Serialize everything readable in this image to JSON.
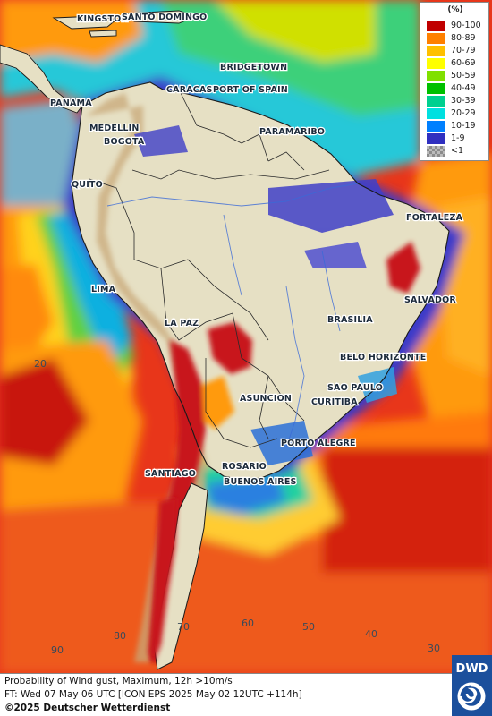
{
  "map": {
    "cities": [
      {
        "name": "KINGSTON"
      },
      {
        "name": "SANTO DOMINGO"
      },
      {
        "name": "BRIDGETOWN"
      },
      {
        "name": "PORT OF SPAIN"
      },
      {
        "name": "CARACAS"
      },
      {
        "name": "PANAMA"
      },
      {
        "name": "MEDELLIN"
      },
      {
        "name": "BOGOTA"
      },
      {
        "name": "PARAMARIBO"
      },
      {
        "name": "QUITO"
      },
      {
        "name": "FORTALEZA"
      },
      {
        "name": "LIMA"
      },
      {
        "name": "SALVADOR"
      },
      {
        "name": "LA PAZ"
      },
      {
        "name": "BRASILIA"
      },
      {
        "name": "BELO HORIZONTE"
      },
      {
        "name": "SAO PAULO"
      },
      {
        "name": "ASUNCION"
      },
      {
        "name": "CURITIBA"
      },
      {
        "name": "PORTO ALEGRE"
      },
      {
        "name": "ROSARIO"
      },
      {
        "name": "SANTIAGO"
      },
      {
        "name": "BUENOS AIRES"
      }
    ],
    "latitude_labels": [
      "20"
    ],
    "longitude_labels": [
      "90",
      "80",
      "70",
      "60",
      "50",
      "40",
      "30"
    ],
    "regions": {
      "ocean_background": "#f03a1a",
      "land": "#e9e3c8"
    }
  },
  "legend": {
    "title": "(%)",
    "entries": [
      {
        "label": "90-100",
        "color": "#c00000"
      },
      {
        "label": "80-89",
        "color": "#ff8000"
      },
      {
        "label": "70-79",
        "color": "#ffc000"
      },
      {
        "label": "60-69",
        "color": "#ffff00"
      },
      {
        "label": "50-59",
        "color": "#80e000"
      },
      {
        "label": "40-49",
        "color": "#00c000"
      },
      {
        "label": "30-39",
        "color": "#00d090"
      },
      {
        "label": "20-29",
        "color": "#00e0e0"
      },
      {
        "label": "10-19",
        "color": "#0080ff"
      },
      {
        "label": "1-9",
        "color": "#3030c0"
      },
      {
        "label": "<1",
        "color": "checker"
      }
    ]
  },
  "footer": {
    "line1": "Probability of Wind gust, Maximum, 12h >10m/s",
    "line2": "FT: Wed 07 May 06 UTC [ICON EPS 2025 May 02 12UTC +114h]",
    "line3": "©2025 Deutscher Wetterdienst"
  },
  "logo": {
    "text": "DWD",
    "icon": "dwd-swirl-logo-icon"
  }
}
